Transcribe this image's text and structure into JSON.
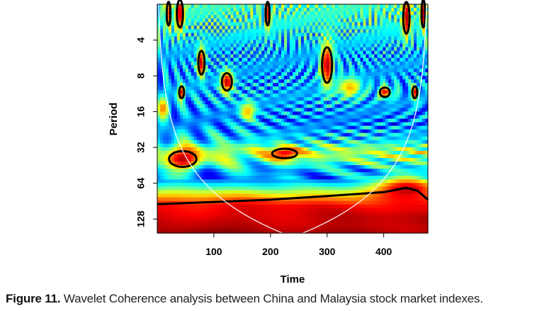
{
  "chart_data": {
    "type": "heatmap",
    "title": "",
    "xlabel": "Time",
    "ylabel": "Period",
    "xlim": [
      0,
      478
    ],
    "ylim_period": [
      2,
      168
    ],
    "y_scale": "log2",
    "y_reversed": true,
    "xticks": [
      100,
      200,
      300,
      400
    ],
    "yticks": [
      4,
      8,
      16,
      32,
      64,
      128
    ],
    "colormap": "jet",
    "value_range": [
      0,
      1
    ],
    "coherence_profile": [
      [
        2,
        0.45
      ],
      [
        3,
        0.4
      ],
      [
        5,
        0.3
      ],
      [
        8,
        0.28
      ],
      [
        12,
        0.3
      ],
      [
        20,
        0.25
      ],
      [
        28,
        0.35
      ],
      [
        34,
        0.55
      ],
      [
        40,
        0.5
      ],
      [
        50,
        0.3
      ],
      [
        60,
        0.25
      ],
      [
        70,
        0.45
      ],
      [
        80,
        0.65
      ],
      [
        90,
        0.8
      ],
      [
        100,
        0.88
      ],
      [
        128,
        0.93
      ],
      [
        168,
        0.97
      ]
    ],
    "hotspots": [
      {
        "time": 45,
        "period": 40,
        "value": 0.95,
        "significant": true,
        "rt": 22,
        "rp": 0.2
      },
      {
        "time": 225,
        "period": 36,
        "value": 0.9,
        "significant": true,
        "rt": 20,
        "rp": 0.12
      },
      {
        "time": 78,
        "period": 6.2,
        "value": 0.95,
        "significant": true,
        "rt": 5,
        "rp": 0.3
      },
      {
        "time": 123,
        "period": 9,
        "value": 0.95,
        "significant": true,
        "rt": 8,
        "rp": 0.22
      },
      {
        "time": 300,
        "period": 6.5,
        "value": 0.95,
        "significant": true,
        "rt": 8,
        "rp": 0.45
      },
      {
        "time": 402,
        "period": 11,
        "value": 0.9,
        "significant": true,
        "rt": 8,
        "rp": 0.12
      },
      {
        "time": 455,
        "period": 11,
        "value": 0.9,
        "significant": true,
        "rt": 4,
        "rp": 0.15
      },
      {
        "time": 43,
        "period": 11,
        "value": 0.9,
        "significant": true,
        "rt": 4,
        "rp": 0.15
      },
      {
        "time": 20,
        "period": 2.4,
        "value": 0.95,
        "significant": true,
        "rt": 3,
        "rp": 0.3
      },
      {
        "time": 40,
        "period": 2.4,
        "value": 0.95,
        "significant": true,
        "rt": 5,
        "rp": 0.35
      },
      {
        "time": 195,
        "period": 2.4,
        "value": 0.95,
        "significant": true,
        "rt": 3,
        "rp": 0.3
      },
      {
        "time": 440,
        "period": 2.6,
        "value": 0.95,
        "significant": true,
        "rt": 5,
        "rp": 0.4
      },
      {
        "time": 470,
        "period": 2.4,
        "value": 0.95,
        "significant": true,
        "rt": 3,
        "rp": 0.35
      },
      {
        "time": 10,
        "period": 15,
        "value": 0.75,
        "significant": false,
        "rt": 8,
        "rp": 0.2
      },
      {
        "time": 160,
        "period": 16,
        "value": 0.7,
        "significant": false,
        "rt": 10,
        "rp": 0.2
      },
      {
        "time": 340,
        "period": 10,
        "value": 0.7,
        "significant": false,
        "rt": 15,
        "rp": 0.2
      },
      {
        "time": 440,
        "period": 72,
        "value": 0.95,
        "significant": false,
        "rt": 40,
        "rp": 0.25
      }
    ],
    "significance_boundary": [
      [
        0,
        96
      ],
      [
        100,
        92
      ],
      [
        200,
        88
      ],
      [
        300,
        82
      ],
      [
        400,
        76
      ],
      [
        440,
        70
      ],
      [
        460,
        74
      ],
      [
        478,
        88
      ]
    ],
    "cone_of_influence_factor": 0.76
  },
  "caption": {
    "label": "Figure 11.",
    "text": " Wavelet Coherence analysis between China and Malaysia stock market indexes."
  }
}
